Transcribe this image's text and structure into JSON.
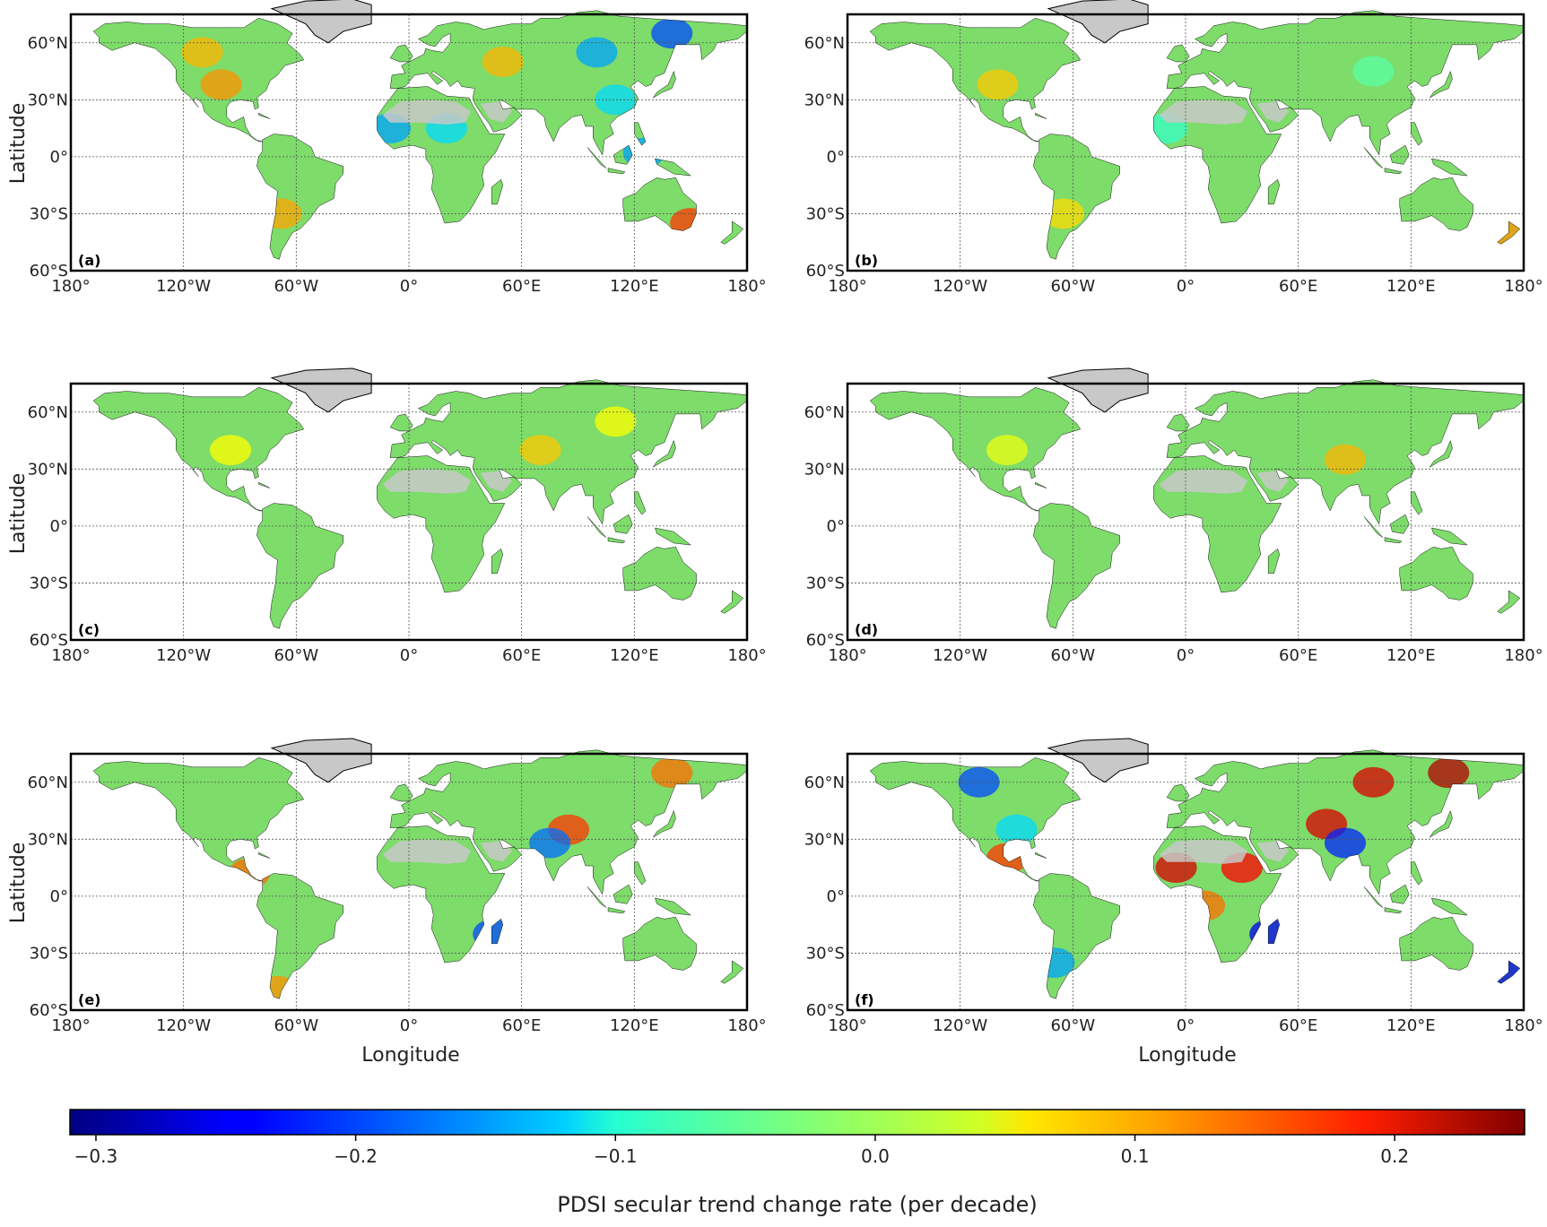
{
  "figure": {
    "x_tick_labels": [
      "180°",
      "120°W",
      "60°W",
      "0°",
      "60°E",
      "120°E",
      "180°"
    ],
    "y_tick_labels": [
      "60°N",
      "30°N",
      "0°",
      "30°S",
      "60°S"
    ],
    "y_axis_label": "Latitude",
    "x_axis_label": "Longitude",
    "panels": [
      {
        "label": "(a)"
      },
      {
        "label": "(b)"
      },
      {
        "label": "(c)"
      },
      {
        "label": "(d)"
      },
      {
        "label": "(e)"
      },
      {
        "label": "(f)"
      }
    ],
    "colorbar": {
      "label": "PDSI secular trend change rate (per decade)",
      "tick_labels": [
        "−0.3",
        "−0.2",
        "−0.1",
        "0.0",
        "0.1",
        "0.2"
      ],
      "ticks": [
        -0.3,
        -0.2,
        -0.1,
        0.0,
        0.1,
        0.2
      ],
      "range": [
        -0.31,
        0.25
      ],
      "colormap": "jet"
    },
    "colors": {
      "land_base": "#7ddc6a",
      "no_data": "#c8c8c8",
      "frame": "#000000",
      "grid": "#555555"
    }
  },
  "chart_data": {
    "type": "heatmap",
    "x_range": [
      -180,
      180
    ],
    "y_range": [
      -60,
      75
    ],
    "panels": [
      {
        "label": "(a)",
        "anomalies": [
          {
            "lon": -100,
            "lat": 38,
            "value": 0.1
          },
          {
            "lon": -110,
            "lat": 55,
            "value": 0.08
          },
          {
            "lon": -68,
            "lat": -30,
            "value": 0.09
          },
          {
            "lon": -10,
            "lat": 15,
            "value": -0.15
          },
          {
            "lon": 20,
            "lat": 15,
            "value": -0.12
          },
          {
            "lon": 100,
            "lat": 55,
            "value": -0.15
          },
          {
            "lon": 140,
            "lat": 65,
            "value": -0.2
          },
          {
            "lon": 110,
            "lat": 30,
            "value": -0.12
          },
          {
            "lon": 50,
            "lat": 50,
            "value": 0.08
          },
          {
            "lon": 125,
            "lat": 2,
            "value": -0.15
          },
          {
            "lon": 150,
            "lat": -35,
            "value": 0.15
          }
        ]
      },
      {
        "label": "(b)",
        "anomalies": [
          {
            "lon": -100,
            "lat": 38,
            "value": 0.07
          },
          {
            "lon": -65,
            "lat": -30,
            "value": 0.06
          },
          {
            "lon": -10,
            "lat": 15,
            "value": -0.07
          },
          {
            "lon": 100,
            "lat": 45,
            "value": -0.05
          },
          {
            "lon": 170,
            "lat": -42,
            "value": 0.1
          }
        ]
      },
      {
        "label": "(c)",
        "anomalies": [
          {
            "lon": -95,
            "lat": 40,
            "value": 0.04
          },
          {
            "lon": 70,
            "lat": 40,
            "value": 0.07
          },
          {
            "lon": 110,
            "lat": 55,
            "value": 0.04
          }
        ]
      },
      {
        "label": "(d)",
        "anomalies": [
          {
            "lon": 85,
            "lat": 35,
            "value": 0.08
          },
          {
            "lon": -95,
            "lat": 40,
            "value": 0.03
          }
        ]
      },
      {
        "label": "(e)",
        "anomalies": [
          {
            "lon": 85,
            "lat": 35,
            "value": 0.15
          },
          {
            "lon": 75,
            "lat": 28,
            "value": -0.18
          },
          {
            "lon": 140,
            "lat": 65,
            "value": 0.12
          },
          {
            "lon": -85,
            "lat": 12,
            "value": 0.12
          },
          {
            "lon": 45,
            "lat": -20,
            "value": -0.2
          },
          {
            "lon": -70,
            "lat": -50,
            "value": 0.1
          }
        ]
      },
      {
        "label": "(f)",
        "anomalies": [
          {
            "lon": 140,
            "lat": 65,
            "value": 0.22
          },
          {
            "lon": 100,
            "lat": 60,
            "value": 0.2
          },
          {
            "lon": 75,
            "lat": 38,
            "value": 0.2
          },
          {
            "lon": 85,
            "lat": 28,
            "value": -0.22
          },
          {
            "lon": -110,
            "lat": 60,
            "value": -0.2
          },
          {
            "lon": -90,
            "lat": 35,
            "value": -0.12
          },
          {
            "lon": -5,
            "lat": 15,
            "value": 0.2
          },
          {
            "lon": 30,
            "lat": 15,
            "value": 0.18
          },
          {
            "lon": 45,
            "lat": -20,
            "value": -0.25
          },
          {
            "lon": 170,
            "lat": -42,
            "value": -0.25
          },
          {
            "lon": -70,
            "lat": -35,
            "value": -0.15
          },
          {
            "lon": -95,
            "lat": 20,
            "value": 0.15
          },
          {
            "lon": 10,
            "lat": -5,
            "value": 0.12
          }
        ]
      }
    ]
  }
}
